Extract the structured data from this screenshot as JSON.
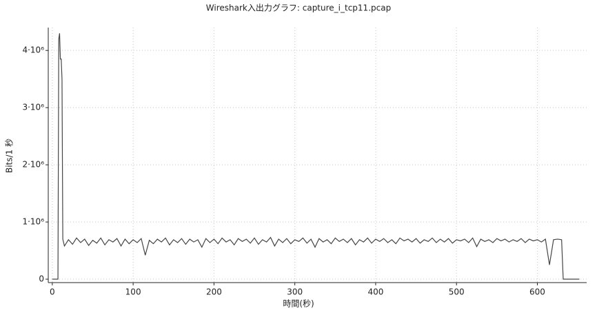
{
  "chart_data": {
    "type": "line",
    "title": "Wireshark入出力グラフ: capture_i_tcp11.pcap",
    "x_label": "時間(秒)",
    "y_label": "Bits/1 秒",
    "color": "#444444",
    "grid": true,
    "xlim": [
      -5,
      661
    ],
    "ylim": [
      -60000,
      4400000
    ],
    "xticks": [
      0,
      100,
      200,
      300,
      400,
      500,
      600
    ],
    "yticks": [
      0,
      {
        "value": 1000000,
        "label": "1·10⁶"
      },
      {
        "value": 2000000,
        "label": "2·10⁶"
      },
      {
        "value": 3000000,
        "label": "3·10⁶"
      },
      {
        "value": 4000000,
        "label": "4·10⁶"
      }
    ],
    "x": [
      0,
      5,
      7,
      8,
      9,
      10,
      11,
      12,
      13,
      15,
      20,
      25,
      30,
      35,
      40,
      45,
      50,
      55,
      60,
      65,
      70,
      75,
      80,
      85,
      90,
      95,
      100,
      105,
      110,
      115,
      120,
      125,
      130,
      135,
      140,
      145,
      150,
      155,
      160,
      165,
      170,
      175,
      180,
      185,
      190,
      195,
      200,
      205,
      210,
      215,
      220,
      225,
      230,
      235,
      240,
      245,
      250,
      255,
      260,
      265,
      270,
      275,
      280,
      285,
      290,
      295,
      300,
      305,
      310,
      315,
      320,
      325,
      330,
      335,
      340,
      345,
      350,
      355,
      360,
      365,
      370,
      375,
      380,
      385,
      390,
      395,
      400,
      405,
      410,
      415,
      420,
      425,
      430,
      435,
      440,
      445,
      450,
      455,
      460,
      465,
      470,
      475,
      480,
      485,
      490,
      495,
      500,
      505,
      510,
      515,
      520,
      525,
      530,
      535,
      540,
      545,
      550,
      555,
      560,
      565,
      570,
      575,
      580,
      585,
      590,
      595,
      600,
      605,
      610,
      615,
      620,
      625,
      630,
      632,
      640,
      652
    ],
    "values": [
      0,
      0,
      0,
      4200000,
      4300000,
      3850000,
      3850000,
      3500000,
      700000,
      580000,
      690000,
      610000,
      720000,
      640000,
      700000,
      590000,
      680000,
      630000,
      720000,
      600000,
      690000,
      650000,
      710000,
      580000,
      700000,
      620000,
      690000,
      640000,
      710000,
      420000,
      680000,
      620000,
      700000,
      650000,
      720000,
      600000,
      690000,
      640000,
      710000,
      610000,
      700000,
      650000,
      690000,
      560000,
      710000,
      640000,
      700000,
      620000,
      720000,
      650000,
      690000,
      600000,
      710000,
      660000,
      700000,
      630000,
      720000,
      610000,
      690000,
      650000,
      730000,
      580000,
      700000,
      640000,
      710000,
      620000,
      690000,
      660000,
      720000,
      630000,
      700000,
      560000,
      710000,
      650000,
      690000,
      620000,
      720000,
      660000,
      700000,
      640000,
      710000,
      600000,
      690000,
      650000,
      720000,
      630000,
      700000,
      660000,
      710000,
      640000,
      690000,
      620000,
      720000,
      670000,
      700000,
      650000,
      710000,
      630000,
      690000,
      660000,
      720000,
      640000,
      700000,
      650000,
      710000,
      630000,
      690000,
      670000,
      700000,
      640000,
      720000,
      570000,
      700000,
      660000,
      690000,
      640000,
      710000,
      670000,
      700000,
      650000,
      690000,
      660000,
      710000,
      640000,
      700000,
      670000,
      690000,
      650000,
      700000,
      250000,
      690000,
      700000,
      690000,
      0,
      0,
      0
    ]
  }
}
